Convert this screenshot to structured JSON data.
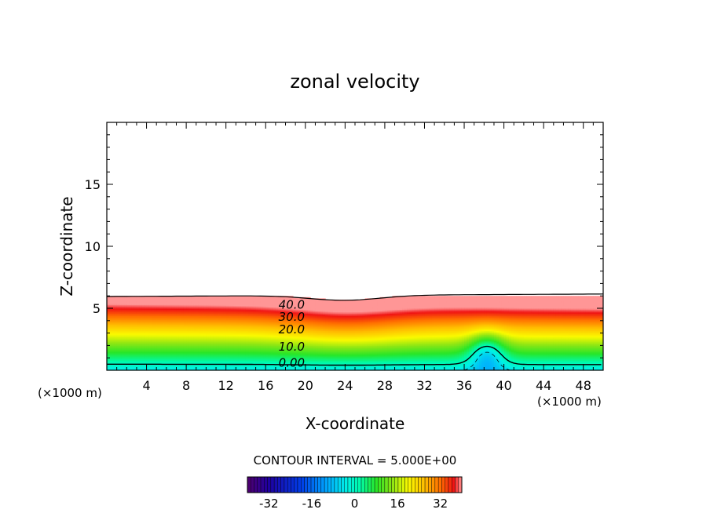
{
  "chart_data": {
    "type": "contour",
    "title": "zonal velocity",
    "xlabel": "X-coordinate",
    "ylabel": "Z-coordinate",
    "x_unit_left": "(×1000 m)",
    "x_unit_right": "(×1000 m)",
    "xlim": [
      0,
      50
    ],
    "ylim": [
      0,
      20
    ],
    "x_ticks": [
      4,
      8,
      12,
      16,
      20,
      24,
      28,
      32,
      36,
      40,
      44,
      48
    ],
    "y_ticks": [
      5,
      10,
      15
    ],
    "contour_labels": [
      {
        "value": "40.0",
        "x": 17.3,
        "z": 5.3
      },
      {
        "value": "30.0",
        "x": 17.3,
        "z": 4.3
      },
      {
        "value": "20.0",
        "x": 17.3,
        "z": 3.3
      },
      {
        "value": "10.0",
        "x": 17.3,
        "z": 1.9
      },
      {
        "value": "0.00",
        "x": 17.3,
        "z": 0.6
      }
    ],
    "contour_interval_text": "CONTOUR INTERVAL = 5.000E+00",
    "colorbar": {
      "range": [
        -40,
        40
      ],
      "tick_labels": [
        "-32",
        "-16",
        "0",
        "16",
        "32"
      ],
      "tick_values": [
        -32,
        -16,
        0,
        16,
        32
      ]
    }
  }
}
